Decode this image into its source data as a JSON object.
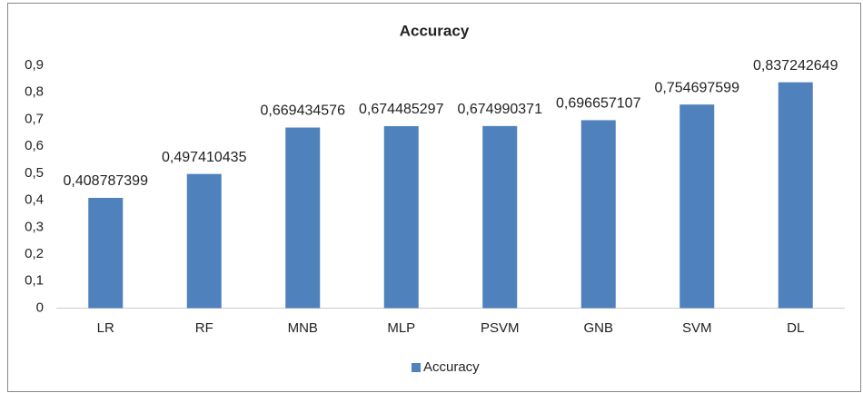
{
  "chart_data": {
    "type": "bar",
    "title": "Accuracy",
    "categories": [
      "LR",
      "RF",
      "MNB",
      "MLP",
      "PSVM",
      "GNB",
      "SVM",
      "DL"
    ],
    "series": [
      {
        "name": "Accuracy",
        "color": "#4f81bd",
        "values": [
          0.408787399,
          0.497410435,
          0.669434576,
          0.674485297,
          0.674990371,
          0.696657107,
          0.754697599,
          0.837242649
        ],
        "value_labels": [
          "0,408787399",
          "0,497410435",
          "0,669434576",
          "0,674485297",
          "0,674990371",
          "0,696657107",
          "0,754697599",
          "0,837242649"
        ]
      }
    ],
    "ylim": [
      0,
      0.9
    ],
    "yticks": [
      0,
      {
        "value": 0.1,
        "label": "0,1"
      },
      {
        "value": 0.2,
        "label": "0,2"
      },
      {
        "value": 0.3,
        "label": "0,3"
      },
      {
        "value": 0.4,
        "label": "0,4"
      },
      {
        "value": 0.5,
        "label": "0,5"
      },
      {
        "value": 0.6,
        "label": "0,6"
      },
      {
        "value": 0.7,
        "label": "0,7"
      },
      {
        "value": 0.8,
        "label": "0,8"
      },
      {
        "value": 0.9,
        "label": "0,9"
      }
    ],
    "grid": false,
    "legend": "bottom"
  }
}
